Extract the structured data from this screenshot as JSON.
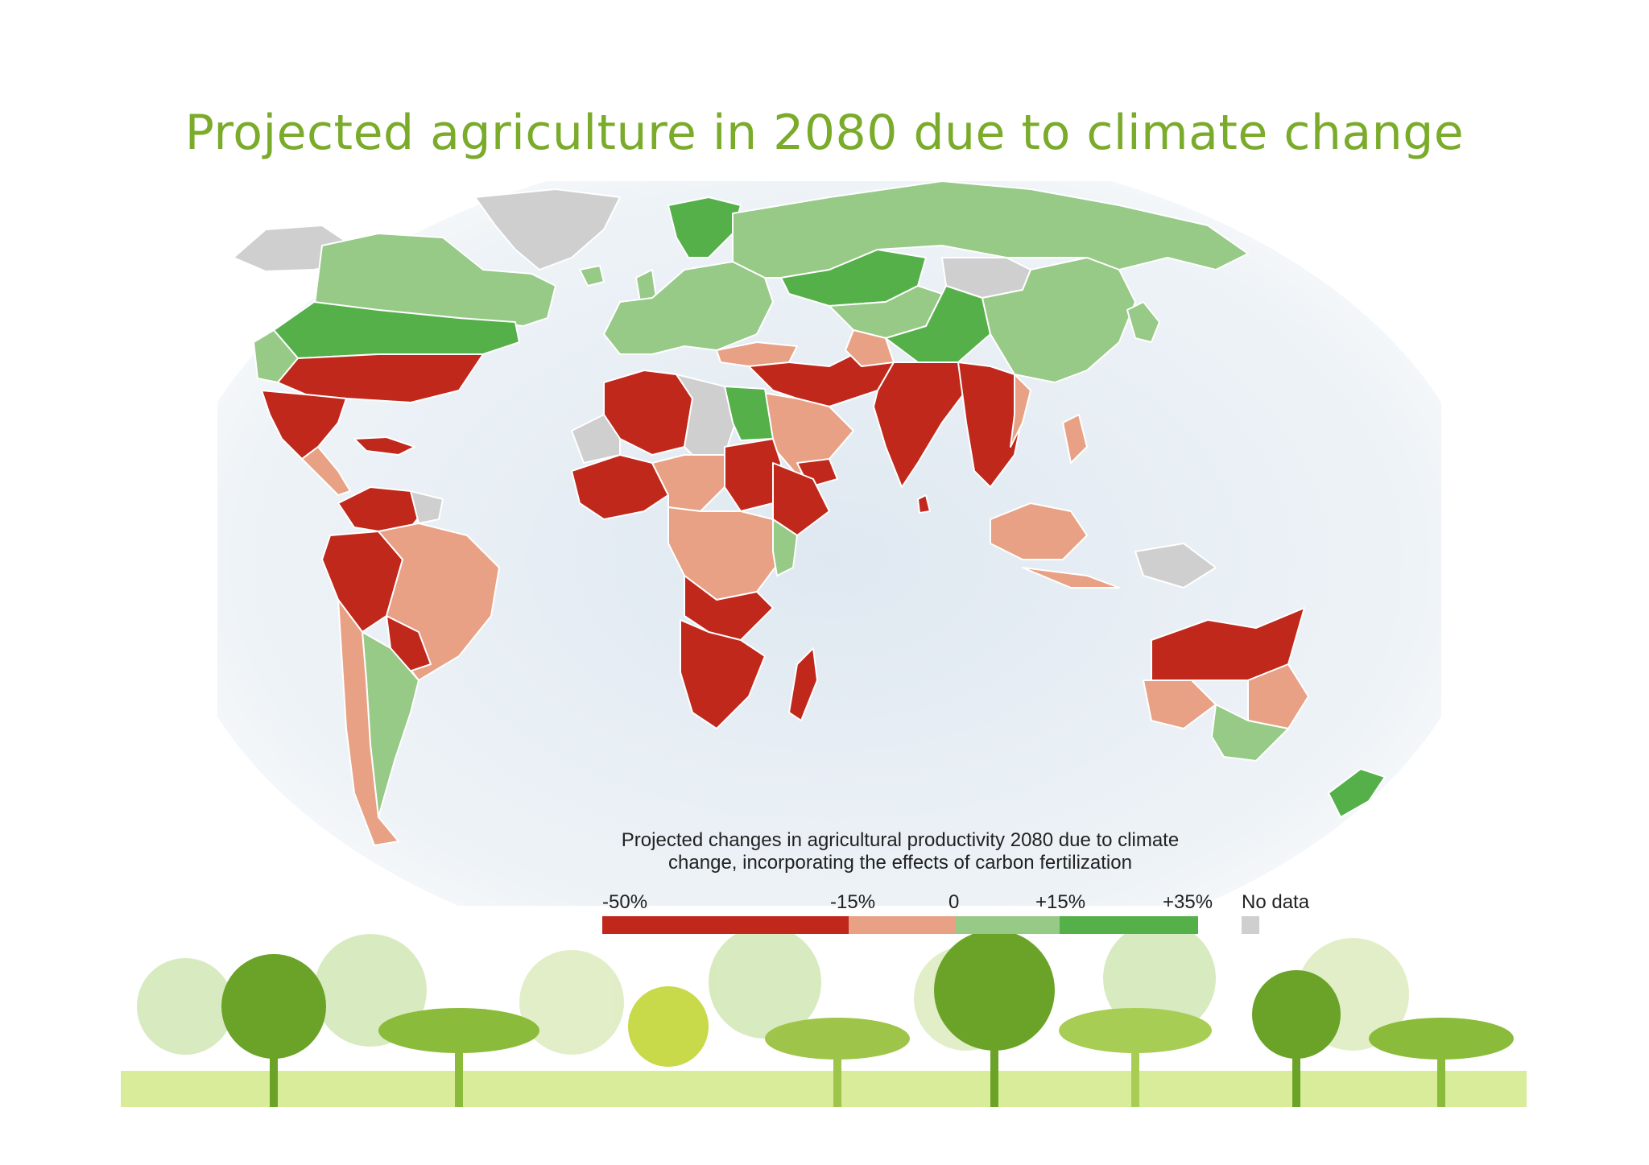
{
  "slide": {
    "title": "Projected agriculture in 2080 due to climate change"
  },
  "legend": {
    "caption": "Projected changes in agricultural productivity 2080 due to climate change, incorporating the effects of carbon fertilization",
    "ticks": [
      "-50%",
      "-15%",
      "0",
      "+15%",
      "+35%"
    ],
    "no_data_label": "No data",
    "bins": [
      {
        "range": "-50% to -15%",
        "color": "#c0281c"
      },
      {
        "range": "-15% to 0",
        "color": "#e8a184"
      },
      {
        "range": "0 to +15%",
        "color": "#97c987"
      },
      {
        "range": "+15% to +35%",
        "color": "#55b04a"
      }
    ],
    "no_data_color": "#cfcfcf"
  },
  "map": {
    "ocean_color": "#e7eef4",
    "regions": [
      {
        "name": "Greenland",
        "class": "No data"
      },
      {
        "name": "Alaska",
        "class": "No data"
      },
      {
        "name": "Canada",
        "class": "0 to +15%"
      },
      {
        "name": "Northern United States",
        "class": "+15% to +35%"
      },
      {
        "name": "Southern United States",
        "class": "-50% to -15%"
      },
      {
        "name": "Mexico",
        "class": "-50% to -15%"
      },
      {
        "name": "Central America",
        "class": "-15% to 0"
      },
      {
        "name": "Northern South America",
        "class": "-50% to -15%"
      },
      {
        "name": "Brazil",
        "class": "-15% to 0"
      },
      {
        "name": "Argentina",
        "class": "0 to +15%"
      },
      {
        "name": "Chile",
        "class": "-15% to 0"
      },
      {
        "name": "Scandinavia",
        "class": "+15% to +35%"
      },
      {
        "name": "Europe",
        "class": "0 to +15%"
      },
      {
        "name": "Russia",
        "class": "0 to +15%"
      },
      {
        "name": "Kazakhstan",
        "class": "+15% to +35%"
      },
      {
        "name": "Mongolia",
        "class": "No data"
      },
      {
        "name": "China",
        "class": "0 to +15%"
      },
      {
        "name": "Western China",
        "class": "+15% to +35%"
      },
      {
        "name": "Middle East",
        "class": "-50% to -15%"
      },
      {
        "name": "Arabian Peninsula",
        "class": "-15% to 0"
      },
      {
        "name": "India",
        "class": "-50% to -15%"
      },
      {
        "name": "Southeast Asia",
        "class": "-50% to -15%"
      },
      {
        "name": "Indonesia",
        "class": "-15% to 0"
      },
      {
        "name": "New Guinea",
        "class": "No data"
      },
      {
        "name": "North Africa",
        "class": "-50% to -15%"
      },
      {
        "name": "Libya",
        "class": "No data"
      },
      {
        "name": "Egypt",
        "class": "+15% to +35%"
      },
      {
        "name": "Sudan",
        "class": "-50% to -15%"
      },
      {
        "name": "Central Africa",
        "class": "-15% to 0"
      },
      {
        "name": "Kenya",
        "class": "0 to +15%"
      },
      {
        "name": "Southern Africa",
        "class": "-50% to -15%"
      },
      {
        "name": "Madagascar",
        "class": "-50% to -15%"
      },
      {
        "name": "Northern Australia",
        "class": "-50% to -15%"
      },
      {
        "name": "Southeast Australia",
        "class": "0 to +15%"
      },
      {
        "name": "Eastern Australia",
        "class": "-15% to 0"
      },
      {
        "name": "New Zealand",
        "class": "+15% to +35%"
      }
    ]
  }
}
